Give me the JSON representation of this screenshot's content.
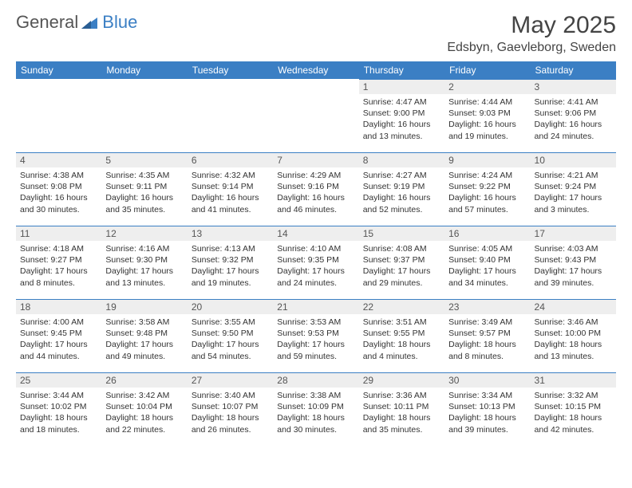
{
  "brand": {
    "word1": "General",
    "word2": "Blue"
  },
  "title": "May 2025",
  "location": "Edsbyn, Gaevleborg, Sweden",
  "colors": {
    "header_bg": "#3b7fc4",
    "header_fg": "#ffffff",
    "daynum_bg": "#eeeeee",
    "border": "#3b7fc4",
    "text": "#333333"
  },
  "day_names": [
    "Sunday",
    "Monday",
    "Tuesday",
    "Wednesday",
    "Thursday",
    "Friday",
    "Saturday"
  ],
  "weeks": [
    [
      {
        "n": "",
        "sr": "",
        "ss": "",
        "dl": ""
      },
      {
        "n": "",
        "sr": "",
        "ss": "",
        "dl": ""
      },
      {
        "n": "",
        "sr": "",
        "ss": "",
        "dl": ""
      },
      {
        "n": "",
        "sr": "",
        "ss": "",
        "dl": ""
      },
      {
        "n": "1",
        "sr": "Sunrise: 4:47 AM",
        "ss": "Sunset: 9:00 PM",
        "dl": "Daylight: 16 hours and 13 minutes."
      },
      {
        "n": "2",
        "sr": "Sunrise: 4:44 AM",
        "ss": "Sunset: 9:03 PM",
        "dl": "Daylight: 16 hours and 19 minutes."
      },
      {
        "n": "3",
        "sr": "Sunrise: 4:41 AM",
        "ss": "Sunset: 9:06 PM",
        "dl": "Daylight: 16 hours and 24 minutes."
      }
    ],
    [
      {
        "n": "4",
        "sr": "Sunrise: 4:38 AM",
        "ss": "Sunset: 9:08 PM",
        "dl": "Daylight: 16 hours and 30 minutes."
      },
      {
        "n": "5",
        "sr": "Sunrise: 4:35 AM",
        "ss": "Sunset: 9:11 PM",
        "dl": "Daylight: 16 hours and 35 minutes."
      },
      {
        "n": "6",
        "sr": "Sunrise: 4:32 AM",
        "ss": "Sunset: 9:14 PM",
        "dl": "Daylight: 16 hours and 41 minutes."
      },
      {
        "n": "7",
        "sr": "Sunrise: 4:29 AM",
        "ss": "Sunset: 9:16 PM",
        "dl": "Daylight: 16 hours and 46 minutes."
      },
      {
        "n": "8",
        "sr": "Sunrise: 4:27 AM",
        "ss": "Sunset: 9:19 PM",
        "dl": "Daylight: 16 hours and 52 minutes."
      },
      {
        "n": "9",
        "sr": "Sunrise: 4:24 AM",
        "ss": "Sunset: 9:22 PM",
        "dl": "Daylight: 16 hours and 57 minutes."
      },
      {
        "n": "10",
        "sr": "Sunrise: 4:21 AM",
        "ss": "Sunset: 9:24 PM",
        "dl": "Daylight: 17 hours and 3 minutes."
      }
    ],
    [
      {
        "n": "11",
        "sr": "Sunrise: 4:18 AM",
        "ss": "Sunset: 9:27 PM",
        "dl": "Daylight: 17 hours and 8 minutes."
      },
      {
        "n": "12",
        "sr": "Sunrise: 4:16 AM",
        "ss": "Sunset: 9:30 PM",
        "dl": "Daylight: 17 hours and 13 minutes."
      },
      {
        "n": "13",
        "sr": "Sunrise: 4:13 AM",
        "ss": "Sunset: 9:32 PM",
        "dl": "Daylight: 17 hours and 19 minutes."
      },
      {
        "n": "14",
        "sr": "Sunrise: 4:10 AM",
        "ss": "Sunset: 9:35 PM",
        "dl": "Daylight: 17 hours and 24 minutes."
      },
      {
        "n": "15",
        "sr": "Sunrise: 4:08 AM",
        "ss": "Sunset: 9:37 PM",
        "dl": "Daylight: 17 hours and 29 minutes."
      },
      {
        "n": "16",
        "sr": "Sunrise: 4:05 AM",
        "ss": "Sunset: 9:40 PM",
        "dl": "Daylight: 17 hours and 34 minutes."
      },
      {
        "n": "17",
        "sr": "Sunrise: 4:03 AM",
        "ss": "Sunset: 9:43 PM",
        "dl": "Daylight: 17 hours and 39 minutes."
      }
    ],
    [
      {
        "n": "18",
        "sr": "Sunrise: 4:00 AM",
        "ss": "Sunset: 9:45 PM",
        "dl": "Daylight: 17 hours and 44 minutes."
      },
      {
        "n": "19",
        "sr": "Sunrise: 3:58 AM",
        "ss": "Sunset: 9:48 PM",
        "dl": "Daylight: 17 hours and 49 minutes."
      },
      {
        "n": "20",
        "sr": "Sunrise: 3:55 AM",
        "ss": "Sunset: 9:50 PM",
        "dl": "Daylight: 17 hours and 54 minutes."
      },
      {
        "n": "21",
        "sr": "Sunrise: 3:53 AM",
        "ss": "Sunset: 9:53 PM",
        "dl": "Daylight: 17 hours and 59 minutes."
      },
      {
        "n": "22",
        "sr": "Sunrise: 3:51 AM",
        "ss": "Sunset: 9:55 PM",
        "dl": "Daylight: 18 hours and 4 minutes."
      },
      {
        "n": "23",
        "sr": "Sunrise: 3:49 AM",
        "ss": "Sunset: 9:57 PM",
        "dl": "Daylight: 18 hours and 8 minutes."
      },
      {
        "n": "24",
        "sr": "Sunrise: 3:46 AM",
        "ss": "Sunset: 10:00 PM",
        "dl": "Daylight: 18 hours and 13 minutes."
      }
    ],
    [
      {
        "n": "25",
        "sr": "Sunrise: 3:44 AM",
        "ss": "Sunset: 10:02 PM",
        "dl": "Daylight: 18 hours and 18 minutes."
      },
      {
        "n": "26",
        "sr": "Sunrise: 3:42 AM",
        "ss": "Sunset: 10:04 PM",
        "dl": "Daylight: 18 hours and 22 minutes."
      },
      {
        "n": "27",
        "sr": "Sunrise: 3:40 AM",
        "ss": "Sunset: 10:07 PM",
        "dl": "Daylight: 18 hours and 26 minutes."
      },
      {
        "n": "28",
        "sr": "Sunrise: 3:38 AM",
        "ss": "Sunset: 10:09 PM",
        "dl": "Daylight: 18 hours and 30 minutes."
      },
      {
        "n": "29",
        "sr": "Sunrise: 3:36 AM",
        "ss": "Sunset: 10:11 PM",
        "dl": "Daylight: 18 hours and 35 minutes."
      },
      {
        "n": "30",
        "sr": "Sunrise: 3:34 AM",
        "ss": "Sunset: 10:13 PM",
        "dl": "Daylight: 18 hours and 39 minutes."
      },
      {
        "n": "31",
        "sr": "Sunrise: 3:32 AM",
        "ss": "Sunset: 10:15 PM",
        "dl": "Daylight: 18 hours and 42 minutes."
      }
    ]
  ]
}
